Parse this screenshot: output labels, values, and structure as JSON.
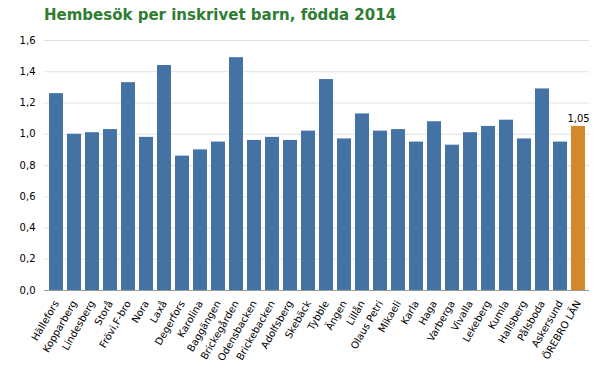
{
  "chart_data": {
    "type": "bar",
    "title": "Hembesök per inskrivet barn, födda 2014",
    "title_color": "#2e7d32",
    "categories": [
      "Hällefors",
      "Kopparberg",
      "Lindesberg",
      "Storå",
      "Frövi,F-bro",
      "Nora",
      "Laxå",
      "Degerfors",
      "Karolina",
      "Baggängen",
      "Brickegården",
      "Odensbacken",
      "Brickebacken",
      "Adolfsberg",
      "Skebäck",
      "Tybble",
      "Ängen",
      "Lillån",
      "Olaus Petri",
      "Mikaeli",
      "Karla",
      "Haga",
      "Varberga",
      "Vivalla",
      "Lekeberg",
      "Kumla",
      "Hallsberg",
      "Pålsboda",
      "Askersund",
      "ÖREBRO LÄN"
    ],
    "values": [
      1.26,
      1.0,
      1.01,
      1.03,
      1.33,
      0.98,
      1.44,
      0.86,
      0.9,
      0.95,
      1.49,
      0.96,
      0.98,
      0.96,
      1.02,
      1.35,
      0.97,
      1.13,
      1.02,
      1.03,
      0.95,
      1.08,
      0.93,
      1.01,
      1.05,
      1.09,
      0.97,
      1.29,
      0.95,
      1.05
    ],
    "colors": [
      "#4472A4",
      "#4472A4",
      "#4472A4",
      "#4472A4",
      "#4472A4",
      "#4472A4",
      "#4472A4",
      "#4472A4",
      "#4472A4",
      "#4472A4",
      "#4472A4",
      "#4472A4",
      "#4472A4",
      "#4472A4",
      "#4472A4",
      "#4472A4",
      "#4472A4",
      "#4472A4",
      "#4472A4",
      "#4472A4",
      "#4472A4",
      "#4472A4",
      "#4472A4",
      "#4472A4",
      "#4472A4",
      "#4472A4",
      "#4472A4",
      "#4472A4",
      "#4472A4",
      "#D4882A"
    ],
    "annotations": [
      {
        "text": "1,05",
        "x": "ÖREBRO LÄN",
        "y": 1.05
      }
    ],
    "ylim": [
      0.0,
      1.6
    ],
    "yticks": [
      {
        "value": 0.0,
        "label": "0,0"
      },
      {
        "value": 0.2,
        "label": "0,2"
      },
      {
        "value": 0.4,
        "label": "0,4"
      },
      {
        "value": 0.6,
        "label": "0,6"
      },
      {
        "value": 0.8,
        "label": "0,8"
      },
      {
        "value": 1.0,
        "label": "1,0"
      },
      {
        "value": 1.2,
        "label": "1,2"
      },
      {
        "value": 1.4,
        "label": "1,4"
      },
      {
        "value": 1.6,
        "label": "1,6"
      }
    ],
    "grid": true
  }
}
